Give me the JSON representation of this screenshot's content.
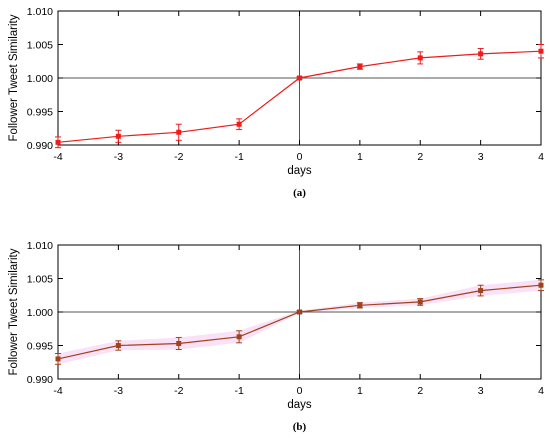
{
  "chart_data": [
    {
      "type": "line",
      "caption": "(a)",
      "xlabel": "days",
      "ylabel": "Follower Tweet Similarity",
      "x": [
        -4,
        -3,
        -2,
        -1,
        0,
        1,
        2,
        3,
        4
      ],
      "xlim": [
        -4,
        4
      ],
      "ylim": [
        0.99,
        1.01
      ],
      "xticks": [
        "-4",
        "-3",
        "-2",
        "-1",
        "0",
        "1",
        "2",
        "3",
        "4"
      ],
      "yticks": [
        "0.990",
        "0.995",
        "1.000",
        "1.005",
        "1.010"
      ],
      "reference_lines": {
        "x": 0,
        "y": 1.0
      },
      "grid": false,
      "series": [
        {
          "color": "#ee1c1c",
          "marker": "square",
          "band": false,
          "values": [
            0.9904,
            0.9913,
            0.9919,
            0.9931,
            1.0,
            1.0017,
            1.003,
            1.0036,
            1.004
          ],
          "errors": [
            0.0008,
            0.0009,
            0.0012,
            0.0008,
            0.0002,
            0.0004,
            0.0009,
            0.0008,
            0.001
          ]
        }
      ]
    },
    {
      "type": "line",
      "caption": "(b)",
      "xlabel": "days",
      "ylabel": "Follower Tweet Similarity",
      "x": [
        -4,
        -3,
        -2,
        -1,
        0,
        1,
        2,
        3,
        4
      ],
      "xlim": [
        -4,
        4
      ],
      "ylim": [
        0.99,
        1.01
      ],
      "xticks": [
        "-4",
        "-3",
        "-2",
        "-1",
        "0",
        "1",
        "2",
        "3",
        "4"
      ],
      "yticks": [
        "0.990",
        "0.995",
        "1.000",
        "1.005",
        "1.010"
      ],
      "reference_lines": {
        "x": 0,
        "y": 1.0
      },
      "grid": false,
      "series": [
        {
          "color": "#a0421c",
          "marker": "square",
          "band": true,
          "band_color": "#f4c8f2",
          "values": [
            0.993,
            0.995,
            0.9953,
            0.9963,
            1.0,
            1.001,
            1.0015,
            1.0032,
            1.004
          ],
          "errors": [
            0.0008,
            0.0007,
            0.0009,
            0.0009,
            0.0002,
            0.0004,
            0.0005,
            0.0008,
            0.0008
          ]
        }
      ]
    }
  ]
}
